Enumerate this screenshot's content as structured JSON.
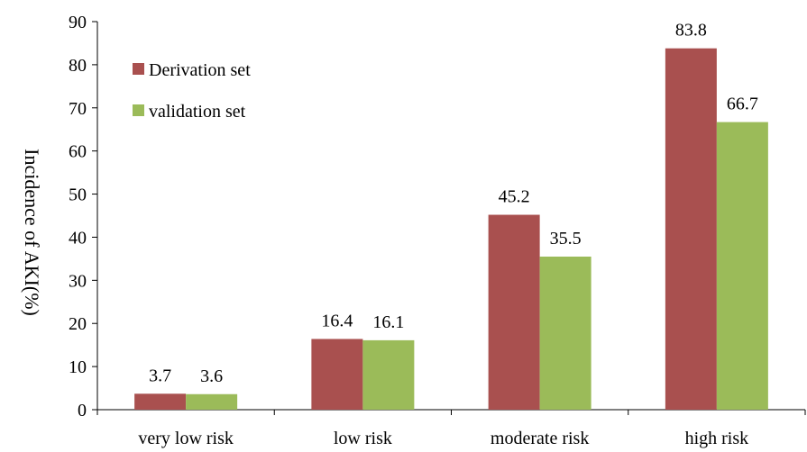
{
  "chart_data": {
    "type": "bar",
    "title": "",
    "xlabel": "",
    "ylabel": "Incidence of AKI(%)",
    "categories": [
      "very low risk",
      "low risk",
      "moderate risk",
      "high risk"
    ],
    "series": [
      {
        "name": "Derivation set",
        "values": [
          3.7,
          16.4,
          45.2,
          83.8
        ],
        "labels": [
          "3.7",
          "16.4",
          "45.2",
          "83.8"
        ],
        "color": "#A9504F"
      },
      {
        "name": "validation set",
        "values": [
          3.6,
          16.1,
          35.5,
          66.7
        ],
        "labels": [
          "3.6",
          "16.1",
          "35.5",
          "66.7"
        ],
        "color": "#9BBB59"
      }
    ],
    "ylim": [
      0,
      90
    ],
    "yticks": [
      "0",
      "10",
      "20",
      "30",
      "40",
      "50",
      "60",
      "70",
      "80",
      "90"
    ],
    "grid": false,
    "legend_position": "top-left"
  }
}
